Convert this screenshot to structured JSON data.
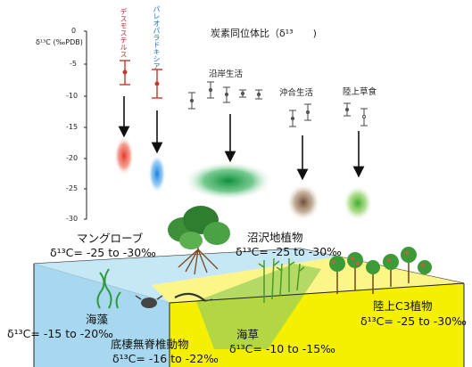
{
  "title": "炭素同位体比（δ¹³",
  "title_close": ")",
  "axis_label": "δ¹³C (‰PDB)",
  "ticks": [
    "0",
    "-5",
    "-10",
    "-15",
    "-20",
    "-25",
    "-30"
  ],
  "species": {
    "sp1": "デスモステルス",
    "sp2": "パレオパラドキシア"
  },
  "groups": {
    "coastal": "沿岸生活",
    "offshore": "沖合生活",
    "terrestrial": "陸上草食"
  },
  "habitats": {
    "mangrove": {
      "name": "マングローブ",
      "value": "δ¹³C= -25 to -30‰"
    },
    "marsh": {
      "name": "沼沢地植物",
      "value": "δ¹³C= -25 to -30‰"
    },
    "seaweed": {
      "name": "海藻",
      "value": "δ¹³C= -15 to -20‰"
    },
    "benthic": {
      "name": "底棲無脊椎動物",
      "value": "δ¹³C= -16 to -22‰"
    },
    "seagrass": {
      "name": "海草",
      "value": "δ¹³C= -10 to -15‰"
    },
    "c3": {
      "name": "陸上C3植物",
      "value": "δ¹³C= -25 to -30‰"
    }
  },
  "colors": {
    "sea": "#a8d8f0",
    "land": "#f5ef00",
    "red": "#d94a3d",
    "blue": "#2a8fe0",
    "green": "#1d9e4a",
    "brown": "#8a6a4a",
    "lightgreen": "#7ccc3a",
    "errorbar_red": "#c0392b",
    "errorbar_gray": "#555555"
  }
}
